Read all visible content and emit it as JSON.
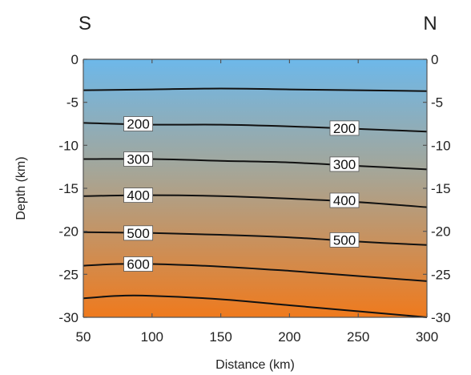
{
  "chart_data": {
    "type": "contour",
    "xlabel": "Distance (km)",
    "ylabel": "Depth (km)",
    "xlim": [
      50,
      300
    ],
    "ylim": [
      -30,
      0
    ],
    "x_ticks": [
      50,
      100,
      150,
      200,
      250,
      300
    ],
    "y_ticks": [
      0,
      -5,
      -10,
      -15,
      -20,
      -25,
      -30
    ],
    "left_annotation": "S",
    "right_annotation": "N",
    "background_gradient": {
      "top_color": "#6db8ea",
      "middle_color": "#a7a595",
      "bottom_color": "#ef7a1d"
    },
    "contours": [
      {
        "points": [
          [
            50,
            -3.6
          ],
          [
            100,
            -3.5
          ],
          [
            150,
            -3.4
          ],
          [
            200,
            -3.5
          ],
          [
            250,
            -3.6
          ],
          [
            300,
            -3.7
          ]
        ]
      },
      {
        "value": "200",
        "points": [
          [
            50,
            -7.4
          ],
          [
            100,
            -7.6
          ],
          [
            150,
            -7.6
          ],
          [
            200,
            -7.8
          ],
          [
            250,
            -8.1
          ],
          [
            300,
            -8.4
          ]
        ],
        "label_positions": [
          [
            90,
            -7.5
          ],
          [
            240,
            -8.0
          ]
        ]
      },
      {
        "value": "300",
        "points": [
          [
            50,
            -11.6
          ],
          [
            100,
            -11.6
          ],
          [
            150,
            -11.8
          ],
          [
            200,
            -12.0
          ],
          [
            250,
            -12.4
          ],
          [
            300,
            -12.8
          ]
        ],
        "label_positions": [
          [
            90,
            -11.6
          ],
          [
            240,
            -12.2
          ]
        ]
      },
      {
        "value": "400",
        "points": [
          [
            50,
            -15.9
          ],
          [
            100,
            -15.8
          ],
          [
            150,
            -15.9
          ],
          [
            200,
            -16.2
          ],
          [
            250,
            -16.6
          ],
          [
            300,
            -17.2
          ]
        ],
        "label_positions": [
          [
            90,
            -15.8
          ],
          [
            240,
            -16.4
          ]
        ]
      },
      {
        "value": "500",
        "points": [
          [
            50,
            -20.1
          ],
          [
            100,
            -20.2
          ],
          [
            150,
            -20.4
          ],
          [
            200,
            -20.7
          ],
          [
            250,
            -21.2
          ],
          [
            300,
            -21.6
          ]
        ],
        "label_positions": [
          [
            90,
            -20.2
          ],
          [
            240,
            -21.0
          ]
        ]
      },
      {
        "value": "600",
        "points": [
          [
            50,
            -24.0
          ],
          [
            75,
            -23.8
          ],
          [
            100,
            -23.8
          ],
          [
            150,
            -24.1
          ],
          [
            200,
            -24.6
          ],
          [
            250,
            -25.2
          ],
          [
            300,
            -25.8
          ]
        ],
        "label_positions": [
          [
            90,
            -23.8
          ]
        ]
      },
      {
        "points": [
          [
            50,
            -27.8
          ],
          [
            75,
            -27.5
          ],
          [
            100,
            -27.5
          ],
          [
            150,
            -27.9
          ],
          [
            200,
            -28.6
          ],
          [
            250,
            -29.3
          ],
          [
            300,
            -30.0
          ]
        ]
      }
    ]
  }
}
